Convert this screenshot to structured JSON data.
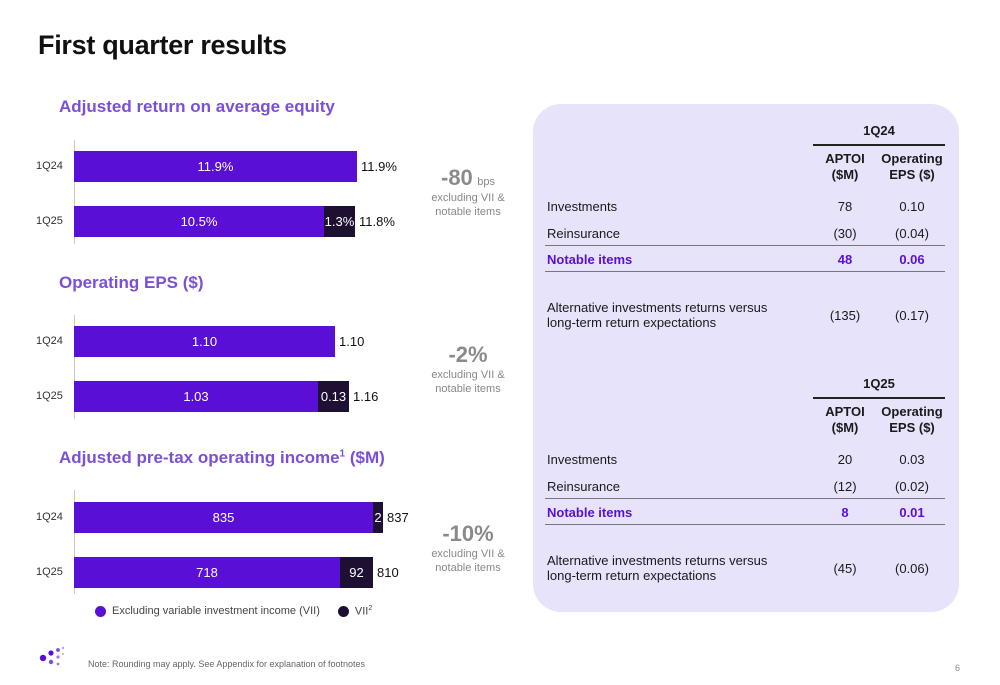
{
  "page": {
    "title": "First quarter results",
    "footnote": "Note: Rounding may apply. See Appendix for explanation of footnotes",
    "page_number": "6"
  },
  "colors": {
    "excluding_vii": "#5a0fd6",
    "vii": "#1d1033",
    "panel": "#e6e3fb",
    "heading": "#7b4fd6"
  },
  "charts": {
    "roe": {
      "title": "Adjusted return on average equity",
      "change": {
        "value": "-80",
        "unit": "bps",
        "note1": "excluding VII &",
        "note2": "notable items"
      },
      "rows": [
        {
          "period": "1Q24",
          "seg1_label": "11.9%",
          "seg2_label": "",
          "total": "11.9%"
        },
        {
          "period": "1Q25",
          "seg1_label": "10.5%",
          "seg2_label": "1.3%",
          "total": "11.8%"
        }
      ]
    },
    "eps": {
      "title": "Operating EPS ($)",
      "change": {
        "value": "-2%",
        "note1": "excluding VII &",
        "note2": "notable items"
      },
      "rows": [
        {
          "period": "1Q24",
          "seg1_label": "1.10",
          "seg2_label": "",
          "total": "1.10"
        },
        {
          "period": "1Q25",
          "seg1_label": "1.03",
          "seg2_label": "0.13",
          "total": "1.16"
        }
      ]
    },
    "aptoi": {
      "title_pre": "Adjusted pre-tax operating income",
      "title_sup": "1",
      "title_post": " ($M)",
      "change": {
        "value": "-10%",
        "note1": "excluding VII &",
        "note2": "notable items"
      },
      "rows": [
        {
          "period": "1Q24",
          "seg1_label": "835",
          "seg2_label": "2",
          "total": "837"
        },
        {
          "period": "1Q25",
          "seg1_label": "718",
          "seg2_label": "92",
          "total": "810"
        }
      ]
    },
    "legend": {
      "item1": "Excluding variable investment income (VII)",
      "item2": "VII",
      "item2_sup": "2"
    }
  },
  "chart_data": [
    {
      "type": "bar",
      "title": "Adjusted return on average equity",
      "categories": [
        "1Q24",
        "1Q25"
      ],
      "series": [
        {
          "name": "Excluding variable investment income (VII)",
          "values": [
            11.9,
            10.5
          ]
        },
        {
          "name": "VII",
          "values": [
            0,
            1.3
          ]
        }
      ],
      "totals": [
        11.9,
        11.8
      ]
    },
    {
      "type": "bar",
      "title": "Operating EPS ($)",
      "categories": [
        "1Q24",
        "1Q25"
      ],
      "series": [
        {
          "name": "Excluding variable investment income (VII)",
          "values": [
            1.1,
            1.03
          ]
        },
        {
          "name": "VII",
          "values": [
            0,
            0.13
          ]
        }
      ],
      "totals": [
        1.1,
        1.16
      ]
    },
    {
      "type": "bar",
      "title": "Adjusted pre-tax operating income ($M)",
      "categories": [
        "1Q24",
        "1Q25"
      ],
      "series": [
        {
          "name": "Excluding variable investment income (VII)",
          "values": [
            835,
            718
          ]
        },
        {
          "name": "VII",
          "values": [
            2,
            92
          ]
        }
      ],
      "totals": [
        837,
        810
      ]
    }
  ],
  "tables": {
    "q24": {
      "period": "1Q24",
      "col1_a": "APTOI",
      "col1_b": "($M)",
      "col2_a": "Operating",
      "col2_b": "EPS ($)",
      "rows": [
        {
          "label": "Investments",
          "aptoi": "78",
          "eps": "0.10"
        },
        {
          "label": "Reinsurance",
          "aptoi": "(30)",
          "eps": "(0.04)"
        },
        {
          "label": "Notable items",
          "aptoi": "48",
          "eps": "0.06"
        }
      ],
      "alt": {
        "label1": "Alternative investments returns versus",
        "label2": "long-term return expectations",
        "aptoi": "(135)",
        "eps": "(0.17)"
      }
    },
    "q25": {
      "period": "1Q25",
      "col1_a": "APTOI",
      "col1_b": "($M)",
      "col2_a": "Operating",
      "col2_b": "EPS ($)",
      "rows": [
        {
          "label": "Investments",
          "aptoi": "20",
          "eps": "0.03"
        },
        {
          "label": "Reinsurance",
          "aptoi": "(12)",
          "eps": "(0.02)"
        },
        {
          "label": "Notable items",
          "aptoi": "8",
          "eps": "0.01"
        }
      ],
      "alt": {
        "label1": "Alternative investments returns versus",
        "label2": "long-term return expectations",
        "aptoi": "(45)",
        "eps": "(0.06)"
      }
    }
  }
}
